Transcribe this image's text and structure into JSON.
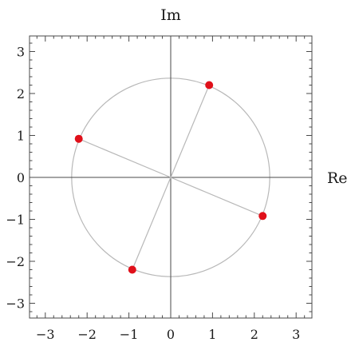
{
  "chart_data": {
    "type": "scatter",
    "title": "",
    "xlabel": "Re",
    "ylabel": "Im",
    "xlim": [
      -3.3,
      3.3
    ],
    "ylim": [
      -3.3,
      3.3
    ],
    "x_ticks": [
      -3,
      -2,
      -1,
      0,
      1,
      2,
      3
    ],
    "y_ticks": [
      -3,
      -2,
      -1,
      0,
      1,
      2,
      3
    ],
    "x_tick_labels": [
      "−3",
      "−2",
      "−1",
      "0",
      "1",
      "2",
      "3"
    ],
    "y_tick_labels": [
      "−3",
      "−2",
      "−1",
      "0",
      "1",
      "2",
      "3"
    ],
    "grid": false,
    "circle": {
      "center": [
        0,
        0
      ],
      "radius": 2.37
    },
    "points": [
      {
        "x": 0.92,
        "y": 2.2
      },
      {
        "x": -2.2,
        "y": 0.92
      },
      {
        "x": -0.92,
        "y": -2.2
      },
      {
        "x": 2.2,
        "y": -0.92
      }
    ],
    "colors": {
      "point": "#e0101a",
      "circle": "#b8b8b8",
      "spokes": "#b8b8b8",
      "axes": "#4a4a4a",
      "frame": "#4a4a4a"
    }
  }
}
